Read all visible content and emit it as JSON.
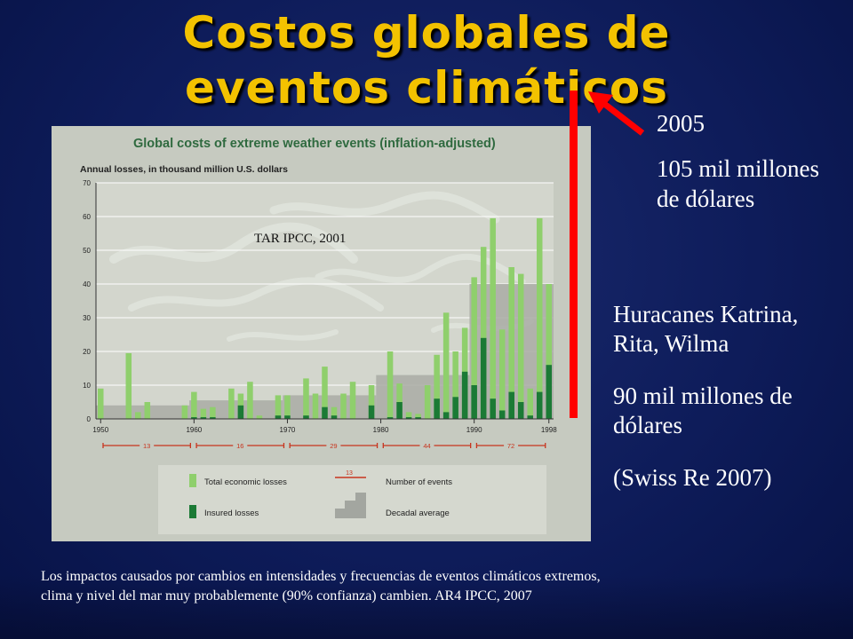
{
  "slide": {
    "title_line1": "Costos globales de",
    "title_line2": "eventos climáticos",
    "figure_source": "TAR IPCC, 2001",
    "year_label": "2005",
    "loss_2005": "105 mil millones de dólares",
    "hurricanes": "Huracanes Katrina, Rita, Wilma",
    "hurricane_loss": "90 mil millones de dólares",
    "source": "(Swiss Re 2007)",
    "footnote_line1": "Los impactos causados por cambios en intensidades y frecuencias de eventos climáticos extremos,",
    "footnote_line2": "clima y nivel del mar muy probablemente (90% confianza) cambien. AR4 IPCC, 2007",
    "colors": {
      "title": "#f3c200",
      "background": "#0c1a55",
      "highlight_bar": "#ff0000",
      "arrow": "#ff0000"
    }
  },
  "chart_data": {
    "type": "bar",
    "title": "Global costs of extreme weather events (inflation-adjusted)",
    "ylabel": "Annual losses, in thousand million U.S. dollars",
    "ylim": [
      0,
      70
    ],
    "yticks": [
      0,
      10,
      20,
      30,
      40,
      50,
      60,
      70
    ],
    "xlim": [
      1950,
      1999
    ],
    "xticks": [
      1950,
      1960,
      1970,
      1980,
      1990,
      1998
    ],
    "grid": true,
    "series": [
      {
        "name": "Total economic losses",
        "color": "#8fcf6c",
        "points": [
          [
            1950,
            9
          ],
          [
            1953,
            19.5
          ],
          [
            1954,
            2
          ],
          [
            1955,
            5
          ],
          [
            1959,
            4
          ],
          [
            1960,
            8
          ],
          [
            1961,
            3
          ],
          [
            1962,
            3.5
          ],
          [
            1964,
            9
          ],
          [
            1965,
            7.5
          ],
          [
            1966,
            11
          ],
          [
            1967,
            1
          ],
          [
            1969,
            7
          ],
          [
            1970,
            7
          ],
          [
            1972,
            12
          ],
          [
            1973,
            7.5
          ],
          [
            1974,
            15.5
          ],
          [
            1975,
            3.5
          ],
          [
            1976,
            7.5
          ],
          [
            1977,
            11
          ],
          [
            1979,
            10
          ],
          [
            1981,
            20
          ],
          [
            1982,
            10.5
          ],
          [
            1983,
            2
          ],
          [
            1984,
            1.5
          ],
          [
            1985,
            10
          ],
          [
            1986,
            19
          ],
          [
            1987,
            31.5
          ],
          [
            1988,
            20
          ],
          [
            1989,
            27
          ],
          [
            1990,
            42
          ],
          [
            1991,
            51
          ],
          [
            1992,
            59.5
          ],
          [
            1993,
            26.5
          ],
          [
            1994,
            45
          ],
          [
            1995,
            43
          ],
          [
            1996,
            9
          ],
          [
            1997,
            59.5
          ],
          [
            1998,
            40
          ]
        ]
      },
      {
        "name": "Insured losses",
        "color": "#1b7a35",
        "points": [
          [
            1960,
            0.5
          ],
          [
            1961,
            0.5
          ],
          [
            1962,
            0.5
          ],
          [
            1965,
            4
          ],
          [
            1969,
            1
          ],
          [
            1970,
            1
          ],
          [
            1972,
            1
          ],
          [
            1974,
            3.5
          ],
          [
            1975,
            1
          ],
          [
            1979,
            4
          ],
          [
            1981,
            0.5
          ],
          [
            1982,
            5
          ],
          [
            1983,
            0.5
          ],
          [
            1984,
            0.5
          ],
          [
            1986,
            6
          ],
          [
            1987,
            2
          ],
          [
            1988,
            6.5
          ],
          [
            1989,
            14
          ],
          [
            1990,
            10
          ],
          [
            1991,
            24
          ],
          [
            1992,
            6
          ],
          [
            1993,
            2.5
          ],
          [
            1994,
            8
          ],
          [
            1995,
            5
          ],
          [
            1996,
            1
          ],
          [
            1997,
            8
          ],
          [
            1998,
            16
          ]
        ]
      }
    ],
    "decadal_average": {
      "name": "Decadal average",
      "segments": [
        [
          1950,
          1960,
          4
        ],
        [
          1960,
          1970,
          5.5
        ],
        [
          1970,
          1980,
          7
        ],
        [
          1980,
          1990,
          13
        ],
        [
          1990,
          1999,
          40
        ]
      ]
    },
    "number_of_events": {
      "name": "Number of events",
      "segments": [
        [
          1950,
          1960,
          "13"
        ],
        [
          1960,
          1970,
          "16"
        ],
        [
          1970,
          1980,
          "29"
        ],
        [
          1980,
          1990,
          "44"
        ],
        [
          1990,
          1998,
          "72"
        ]
      ]
    },
    "legend": {
      "placement": "bottom",
      "items": [
        "Total economic losses",
        "Number of events",
        "Insured losses",
        "Decadal average"
      ],
      "sample_number": "13"
    }
  }
}
